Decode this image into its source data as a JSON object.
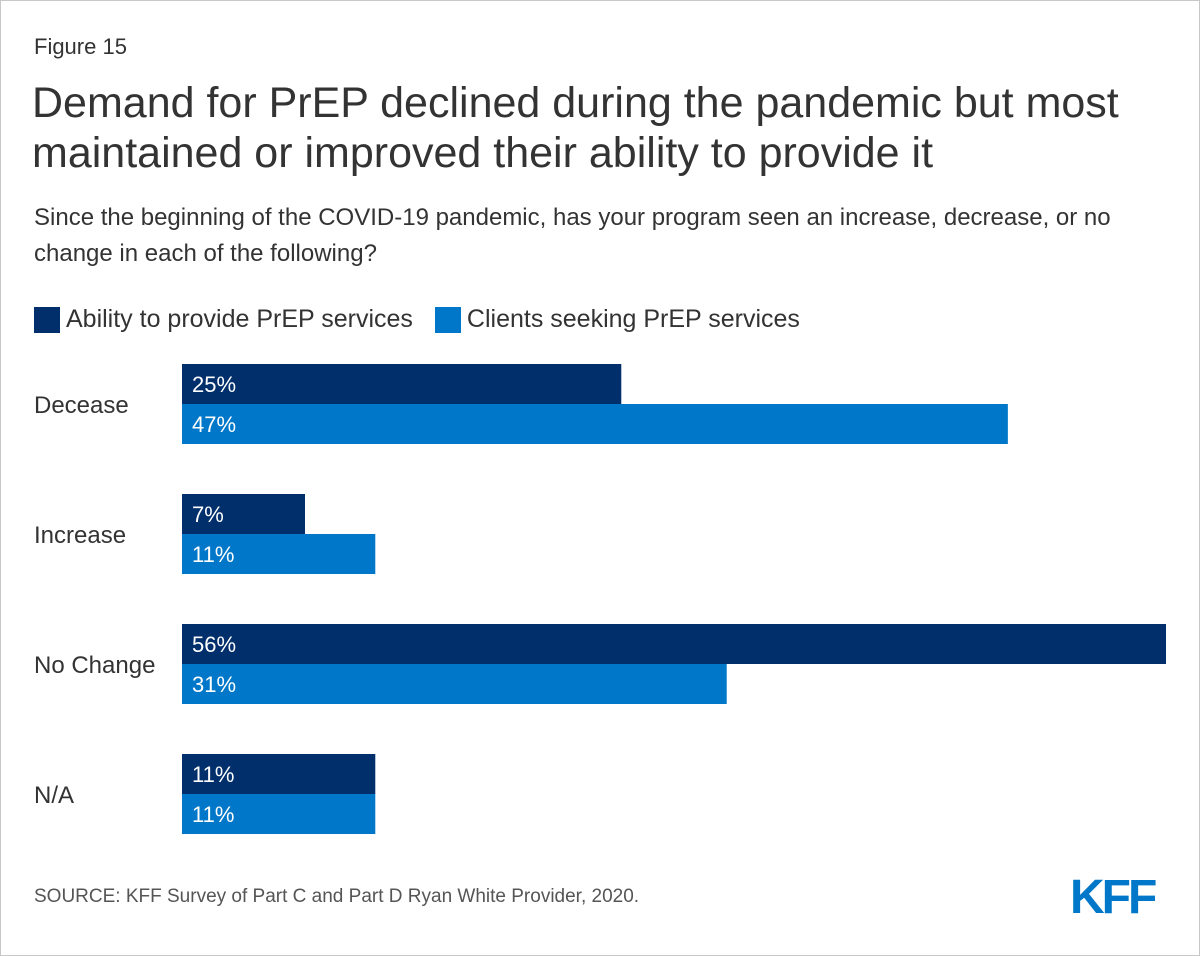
{
  "figure_label": "Figure 15",
  "title": "Demand for PrEP declined during the pandemic but most maintained or improved their ability to provide it",
  "subtitle": "Since the beginning of the COVID-19 pandemic, has your program seen an increase, decrease, or no change in each of the following?",
  "source": "SOURCE: KFF Survey of Part C and Part D Ryan White Provider, 2020.",
  "logo": "KFF",
  "colors": {
    "ability": "#002f6c",
    "clients": "#0077c8",
    "text": "#333333"
  },
  "chart_data": {
    "type": "bar",
    "orientation": "horizontal",
    "title": "Demand for PrEP declined during the pandemic but most maintained or improved their ability to provide it",
    "categories": [
      "Decease",
      "Increase",
      "No Change",
      "N/A"
    ],
    "series": [
      {
        "name": "Ability to provide PrEP services",
        "values": [
          25,
          7,
          56,
          11
        ]
      },
      {
        "name": "Clients seeking PrEP services",
        "values": [
          47,
          11,
          31,
          11
        ]
      }
    ],
    "value_suffix": "%",
    "xlim": [
      0,
      56
    ],
    "legend_position": "top-left",
    "grid": false
  }
}
